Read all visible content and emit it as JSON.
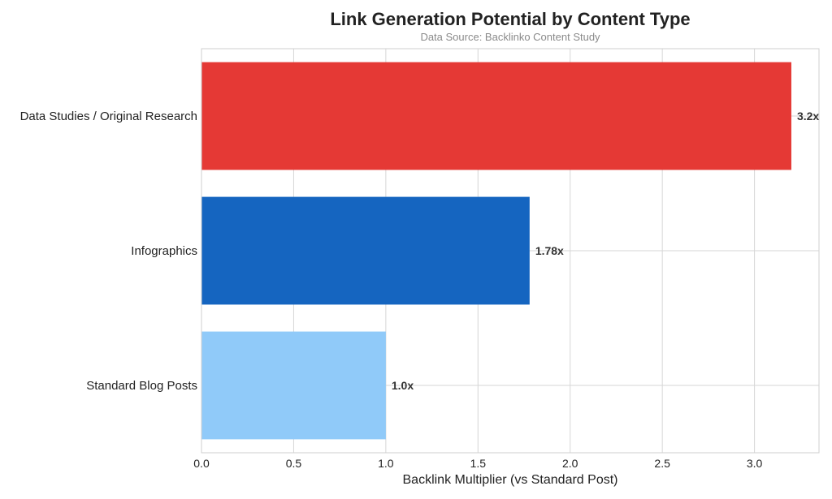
{
  "chart_data": {
    "type": "bar",
    "orientation": "horizontal",
    "title": "Link Generation Potential by Content Type",
    "subtitle": "Data Source: Backlinko Content Study",
    "xlabel": "Backlink Multiplier (vs Standard Post)",
    "ylabel": "",
    "xlim": [
      0,
      3.35
    ],
    "x_ticks": [
      0.0,
      0.5,
      1.0,
      1.5,
      2.0,
      2.5,
      3.0
    ],
    "x_tick_labels": [
      "0.0",
      "0.5",
      "1.0",
      "1.5",
      "2.0",
      "2.5",
      "3.0"
    ],
    "grid": true,
    "categories": [
      "Data Studies / Original Research",
      "Infographics",
      "Standard Blog Posts"
    ],
    "values": [
      3.2,
      1.78,
      1.0
    ],
    "value_labels": [
      "3.2x",
      "1.78x",
      "1.0x"
    ],
    "colors": [
      "#e53935",
      "#1565c0",
      "#90caf9"
    ]
  }
}
